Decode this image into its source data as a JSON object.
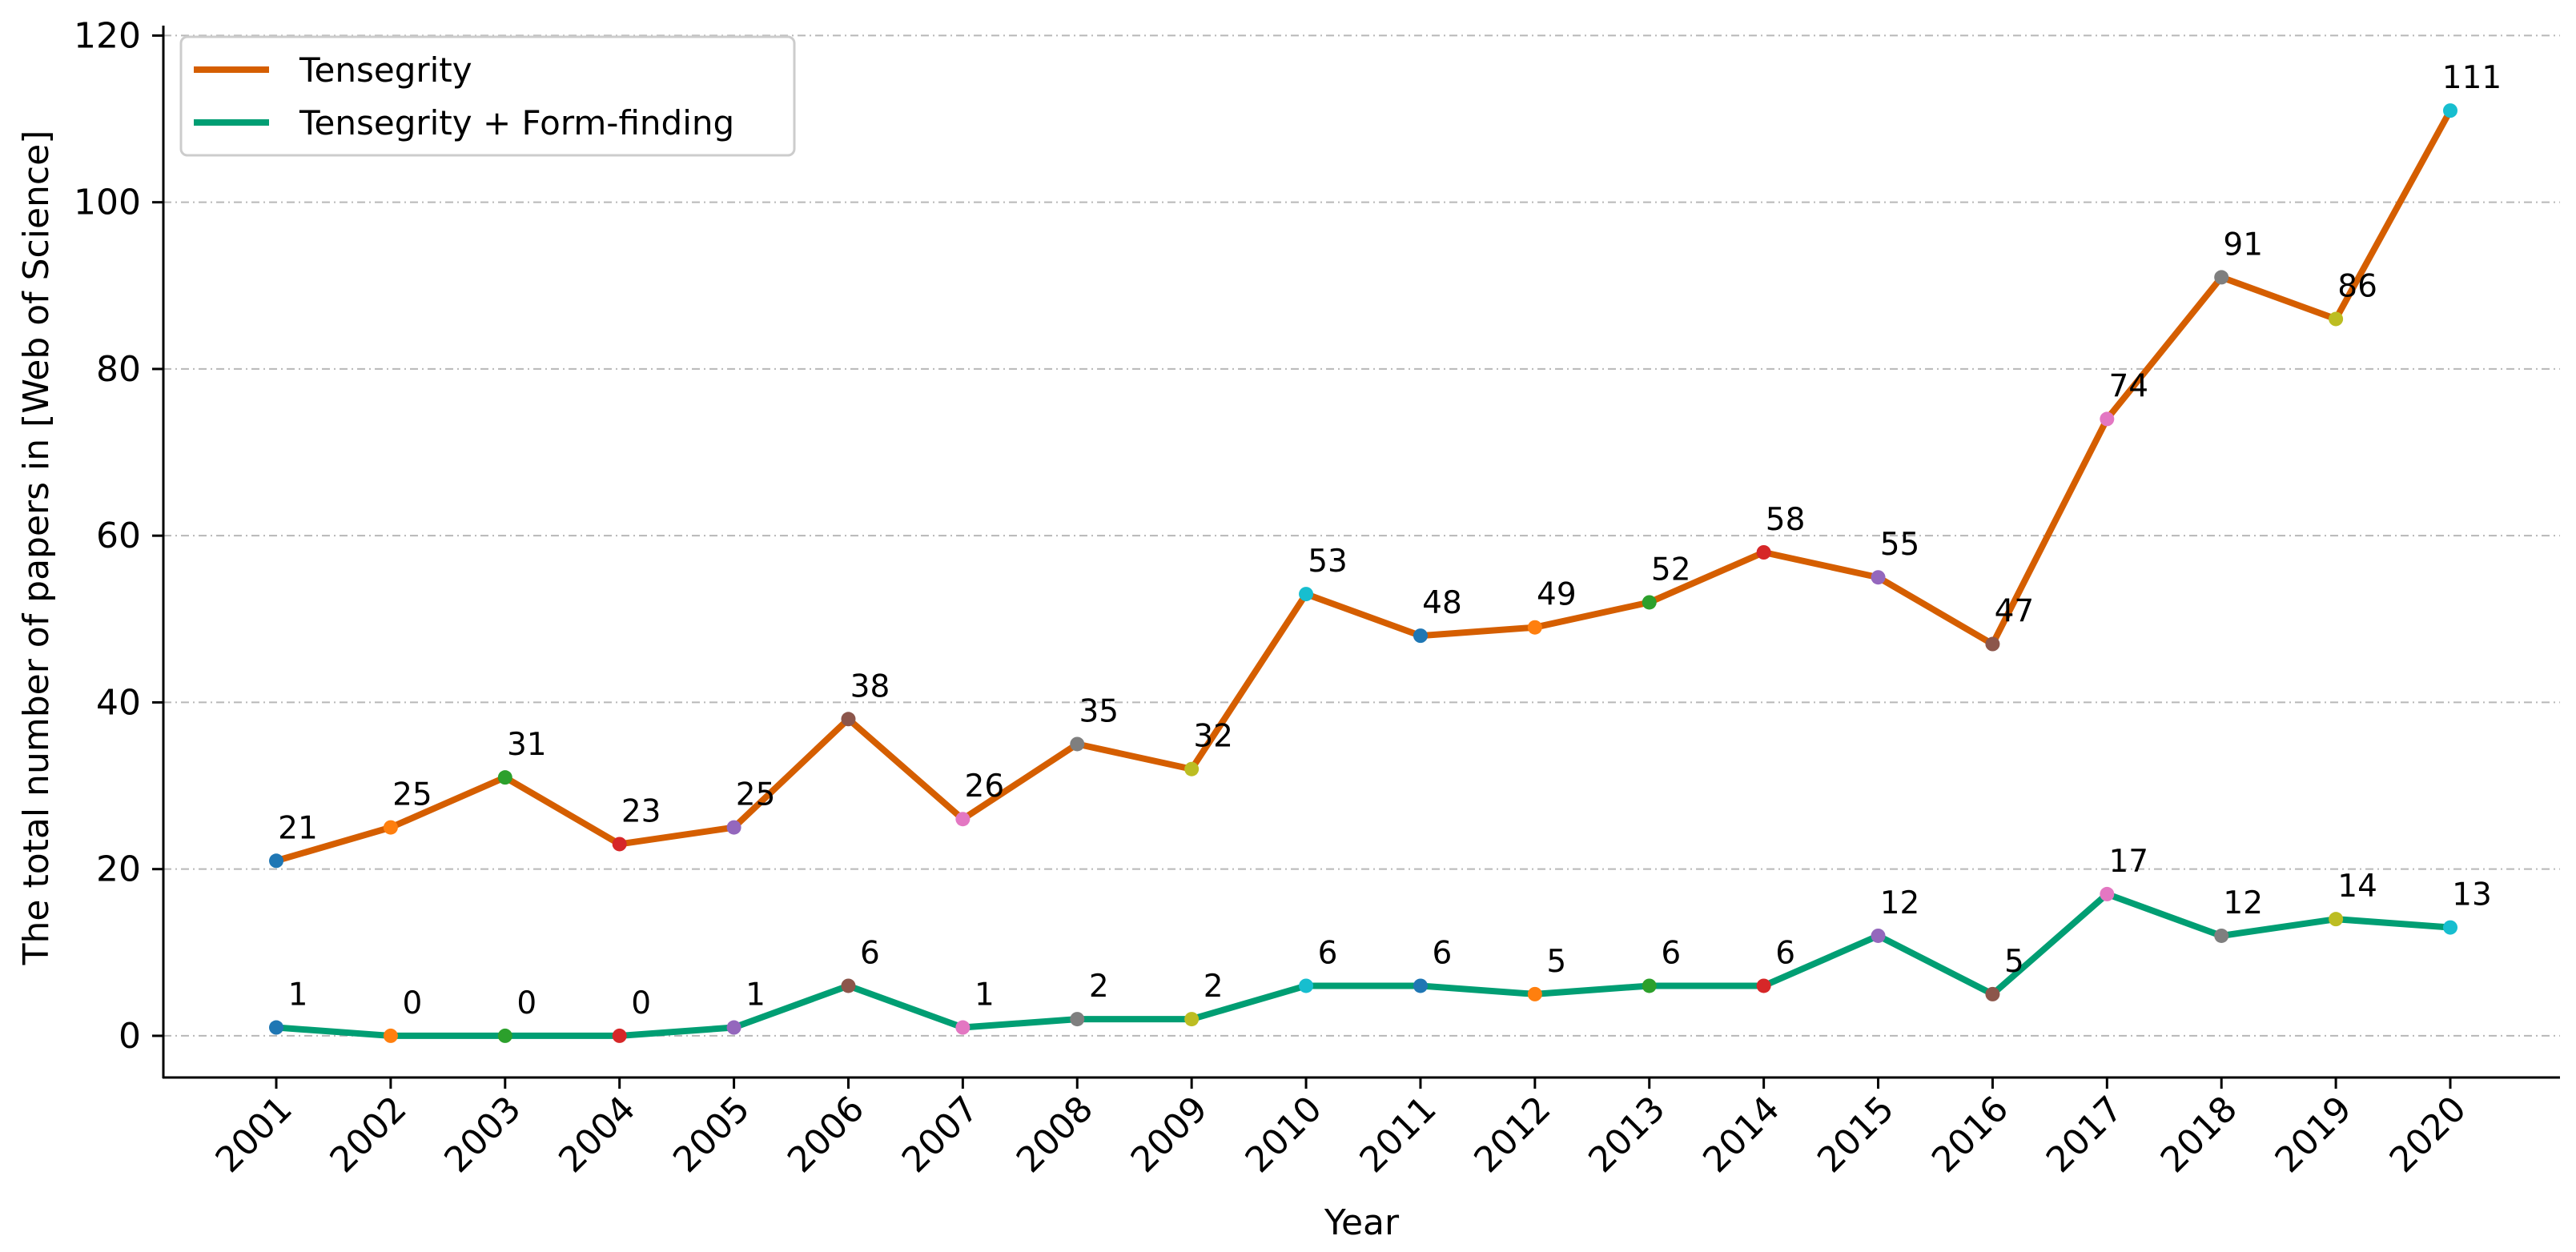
{
  "chart_data": {
    "type": "line",
    "title": "",
    "xlabel": "Year",
    "ylabel": "The total number of papers in [Web of Science]",
    "categories": [
      "2001",
      "2002",
      "2003",
      "2004",
      "2005",
      "2006",
      "2007",
      "2008",
      "2009",
      "2010",
      "2011",
      "2012",
      "2013",
      "2014",
      "2015",
      "2016",
      "2017",
      "2018",
      "2019",
      "2020"
    ],
    "ylim": [
      -5,
      121
    ],
    "yticks": [
      0,
      20,
      40,
      60,
      80,
      100,
      120
    ],
    "grid": "horizontal dashed",
    "legend_position": "top-left",
    "series": [
      {
        "name": "Tensegrity",
        "color": "#d55e00",
        "values": [
          21,
          25,
          31,
          23,
          25,
          38,
          26,
          35,
          32,
          53,
          48,
          49,
          52,
          58,
          55,
          47,
          74,
          91,
          86,
          111
        ]
      },
      {
        "name": "Tensegrity + Form-finding",
        "color": "#009e73",
        "values": [
          1,
          0,
          0,
          0,
          1,
          6,
          1,
          2,
          2,
          6,
          6,
          5,
          6,
          6,
          12,
          5,
          17,
          12,
          14,
          13
        ]
      }
    ],
    "marker_colors": [
      "#1f77b4",
      "#ff7f0e",
      "#2ca02c",
      "#d62728",
      "#9467bd",
      "#8c564b",
      "#e377c2",
      "#7f7f7f",
      "#bcbd22",
      "#17becf",
      "#1f77b4",
      "#ff7f0e",
      "#2ca02c",
      "#d62728",
      "#9467bd",
      "#8c564b",
      "#e377c2",
      "#7f7f7f",
      "#bcbd22",
      "#17becf"
    ]
  }
}
